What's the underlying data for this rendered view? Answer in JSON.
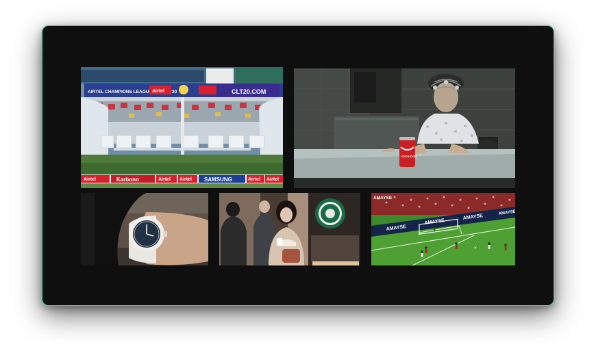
{
  "tiles": [
    {
      "id": "cricket-dugout",
      "banner_left": "AIRTEL CHAMPIONS LEAGUE TWENTY20",
      "banner_airtel": "Airtel",
      "banner_site": "CLT20.COM",
      "board_ads": [
        "Airtel",
        "Karbonn",
        "Airtel",
        "Airtel",
        "SAMSUNG",
        "Airtel",
        "Airtel"
      ]
    },
    {
      "id": "girl-with-soda",
      "can_label": "Coca-Cola"
    },
    {
      "id": "wristwatch"
    },
    {
      "id": "coffee-street"
    },
    {
      "id": "football-match",
      "watermark": "AMAYSE",
      "board_ads": [
        "AMAYSE",
        "AMAYSE",
        "AMAYSE",
        "AMAYSE"
      ]
    }
  ],
  "colors": {
    "frame_border": "#3ad29a",
    "frame_bg": "#0f0f0f"
  }
}
